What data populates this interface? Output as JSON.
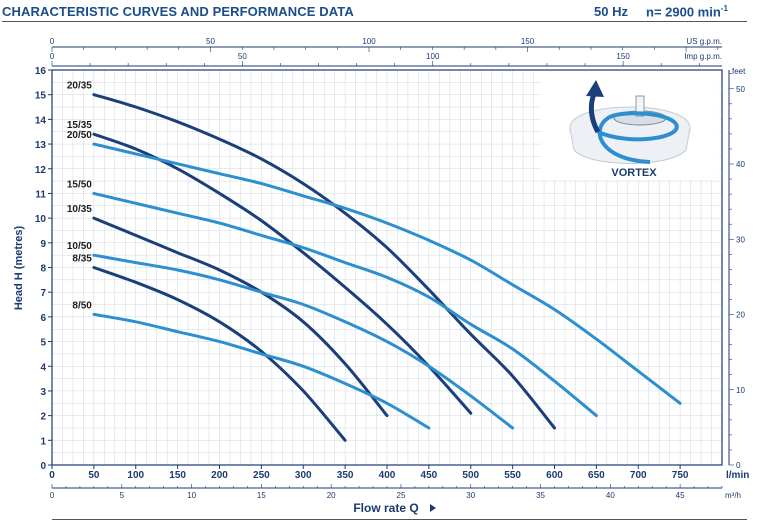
{
  "header": {
    "title": "CHARACTERISTIC CURVES AND PERFORMANCE DATA",
    "frequency": "50 Hz",
    "speed": "n= 2900 min",
    "speed_sup": "-1"
  },
  "inset": {
    "label": "VORTEX"
  },
  "colors": {
    "dark": "#1b3f7a",
    "light": "#2e8fd0",
    "grid": "#cfd6de",
    "text": "#1c3a70"
  },
  "chart_data": {
    "type": "line",
    "xlabel": "Flow rate Q",
    "ylabel": "Head H  (metres)",
    "x_unit": "l/min",
    "xlim": [
      0,
      800
    ],
    "ylim": [
      0,
      16
    ],
    "x_ticks": [
      0,
      50,
      100,
      150,
      200,
      250,
      300,
      350,
      400,
      450,
      500,
      550,
      600,
      650,
      700,
      750
    ],
    "y_ticks": [
      0,
      1,
      2,
      3,
      4,
      5,
      6,
      7,
      8,
      9,
      10,
      11,
      12,
      13,
      14,
      15,
      16
    ],
    "grid": true,
    "secondary_axes": {
      "m3h": {
        "unit": "m³/h",
        "ticks": [
          0,
          5,
          10,
          15,
          20,
          25,
          30,
          35,
          40,
          45
        ]
      },
      "usgpm": {
        "unit": "US g.p.m.",
        "ticks": [
          0,
          50,
          100,
          150
        ]
      },
      "impgpm": {
        "unit": "Imp g.p.m.",
        "ticks": [
          0,
          50,
          100,
          150
        ]
      },
      "feet": {
        "unit": "feet",
        "ticks": [
          0,
          10,
          20,
          30,
          40,
          50
        ]
      }
    },
    "series": [
      {
        "name": "20/35",
        "color": "dark",
        "x": [
          50,
          100,
          150,
          200,
          250,
          300,
          350,
          400,
          450,
          500,
          550,
          600
        ],
        "y": [
          15.0,
          14.5,
          13.9,
          13.2,
          12.4,
          11.4,
          10.2,
          8.8,
          7.1,
          5.3,
          3.6,
          1.5
        ]
      },
      {
        "name": "15/35",
        "color": "dark",
        "x": [
          50,
          100,
          150,
          200,
          250,
          300,
          350,
          400,
          450,
          500
        ],
        "y": [
          13.4,
          12.8,
          12.0,
          11.0,
          9.9,
          8.6,
          7.2,
          5.7,
          4.0,
          2.1
        ]
      },
      {
        "name": "20/50",
        "color": "light",
        "x": [
          50,
          100,
          150,
          200,
          250,
          300,
          350,
          400,
          450,
          500,
          550,
          600,
          650,
          700,
          750
        ],
        "y": [
          13.0,
          12.6,
          12.2,
          11.8,
          11.4,
          10.9,
          10.4,
          9.8,
          9.1,
          8.3,
          7.3,
          6.3,
          5.1,
          3.8,
          2.5
        ]
      },
      {
        "name": "15/50",
        "color": "light",
        "x": [
          50,
          100,
          150,
          200,
          250,
          300,
          350,
          400,
          450,
          500,
          550,
          600,
          650
        ],
        "y": [
          11.0,
          10.6,
          10.2,
          9.8,
          9.3,
          8.8,
          8.2,
          7.6,
          6.8,
          5.7,
          4.7,
          3.4,
          2.0
        ]
      },
      {
        "name": "10/35",
        "color": "dark",
        "x": [
          50,
          100,
          150,
          200,
          250,
          300,
          350,
          400
        ],
        "y": [
          10.0,
          9.3,
          8.6,
          7.9,
          7.0,
          5.8,
          4.1,
          2.0
        ]
      },
      {
        "name": "10/50",
        "color": "light",
        "x": [
          50,
          100,
          150,
          200,
          250,
          300,
          350,
          400,
          450,
          500,
          550
        ],
        "y": [
          8.5,
          8.2,
          7.9,
          7.5,
          7.0,
          6.5,
          5.8,
          5.0,
          4.0,
          2.8,
          1.5
        ]
      },
      {
        "name": "8/35",
        "color": "dark",
        "x": [
          50,
          100,
          150,
          200,
          250,
          300,
          350
        ],
        "y": [
          8.0,
          7.4,
          6.7,
          5.8,
          4.6,
          3.0,
          1.0
        ]
      },
      {
        "name": "8/50",
        "color": "light",
        "x": [
          50,
          100,
          150,
          200,
          250,
          300,
          350,
          400,
          450
        ],
        "y": [
          6.1,
          5.8,
          5.4,
          5.0,
          4.5,
          4.0,
          3.3,
          2.5,
          1.5
        ]
      }
    ]
  }
}
